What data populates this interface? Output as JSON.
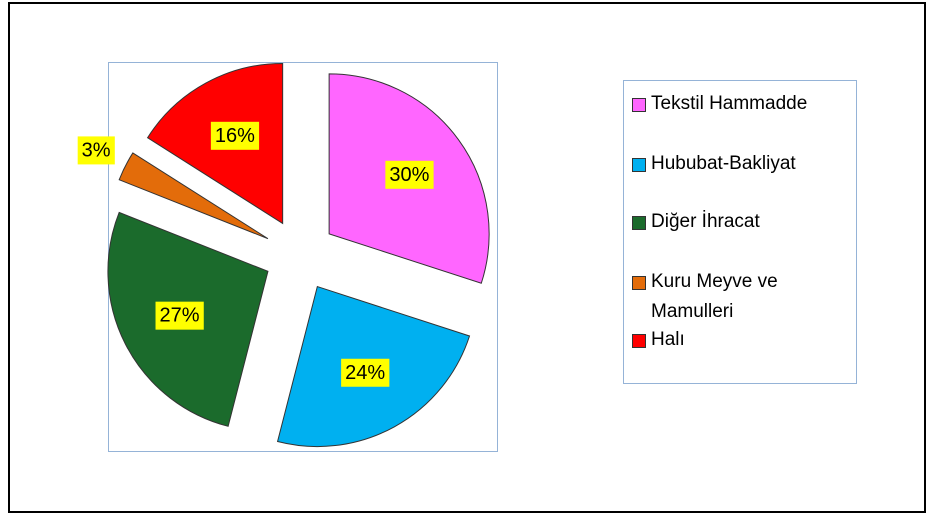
{
  "chart_data": {
    "type": "pie",
    "categories": [
      "Tekstil Hammadde",
      "Hububat-Bakliyat",
      "Diğer İhracat",
      "Kuru Meyve ve Mamulleri",
      "Halı"
    ],
    "values": [
      30,
      24,
      27,
      3,
      16
    ],
    "value_labels": [
      "30%",
      "24%",
      "27%",
      "3%",
      "16%"
    ],
    "colors": [
      "#ff66ff",
      "#00b0f0",
      "#1b6b2c",
      "#e36c0a",
      "#ff0000"
    ],
    "exploded": true,
    "legend": "right"
  }
}
